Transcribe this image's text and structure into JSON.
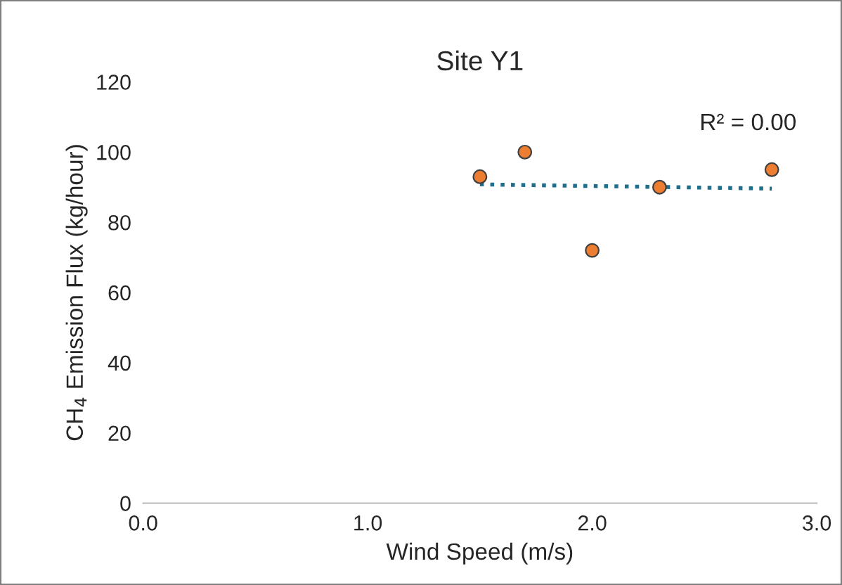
{
  "chart_data": {
    "type": "scatter",
    "title": "Site Y1",
    "xlabel": "Wind Speed (m/s)",
    "ylabel": "CH$_{4}$ Emission Flux (kg/hour)",
    "annotations": [
      "R² = 0.00"
    ],
    "xlim": [
      0,
      3
    ],
    "xticks": [
      {
        "value": 0,
        "label": "0.0"
      },
      {
        "value": 1,
        "label": "1.0"
      },
      {
        "value": 2,
        "label": "2.0"
      },
      {
        "value": 3,
        "label": "3.0"
      }
    ],
    "ylim": [
      0,
      120
    ],
    "yticks": [
      0,
      20,
      40,
      60,
      80,
      100,
      120
    ],
    "grid": false,
    "marker": "circle",
    "series": [
      {
        "color": "#ed7d31",
        "x": [
          1.5,
          1.7,
          2.0,
          2.3,
          2.8
        ],
        "values": [
          93,
          100,
          72,
          90,
          95
        ]
      },
      {
        "type": "line",
        "color": "#1f6e8c",
        "line_style": "dotted",
        "marker": "none",
        "x": [
          1.5,
          2.8
        ],
        "values": [
          90.8,
          89.6
        ]
      }
    ]
  }
}
